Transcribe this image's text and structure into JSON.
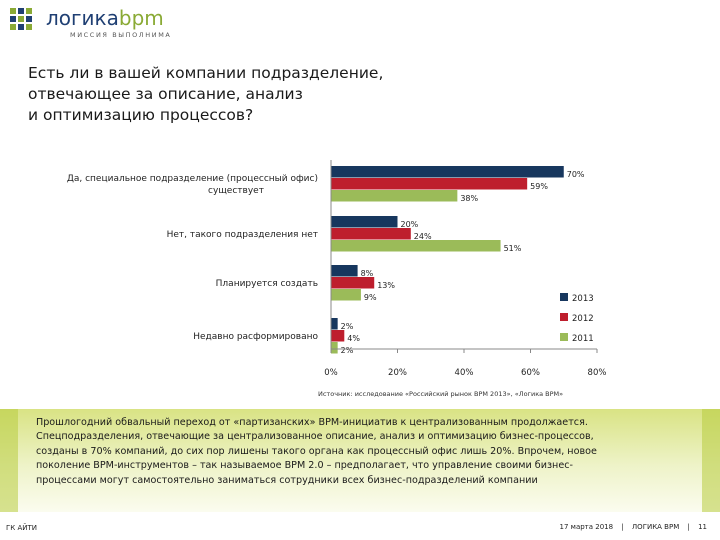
{
  "header": {
    "logo_text_main": "логика",
    "logo_text_accent": "bpm",
    "logo_tagline": "МИССИЯ ВЫПОЛНИМА"
  },
  "title_lines": [
    "Есть ли в вашей компании подразделение,",
    "отвечающее за описание, анализ",
    "и оптимизацию процессов?"
  ],
  "colors": {
    "2013": "#17375e",
    "2012": "#be1e2d",
    "2011": "#9bbb59",
    "logo_blue": "#1f3f73",
    "logo_green": "#8aaa35",
    "note_green": "#d9e384"
  },
  "chart_data": {
    "type": "bar",
    "orientation": "horizontal",
    "categories": [
      "Да, специальное подразделение (процессный офис) существует",
      "Нет, такого подразделения нет",
      "Планируется создать",
      "Недавно расформировано"
    ],
    "category_lines": [
      [
        "Да, специальное подразделение (процессный офис)",
        "существует"
      ],
      [
        "Нет, такого подразделения нет"
      ],
      [
        "Планируется создать"
      ],
      [
        "Недавно расформировано"
      ]
    ],
    "series": [
      {
        "name": "2013",
        "values": [
          70,
          20,
          8,
          2
        ],
        "labels": [
          "70%",
          "20%",
          "8%",
          "2%"
        ]
      },
      {
        "name": "2012",
        "values": [
          59,
          24,
          13,
          4
        ],
        "labels": [
          "59%",
          "24%",
          "13%",
          "4%"
        ]
      },
      {
        "name": "2011",
        "values": [
          38,
          51,
          9,
          2
        ],
        "labels": [
          "38%",
          "51%",
          "9%",
          "2%"
        ]
      }
    ],
    "xlim": [
      0,
      80
    ],
    "xticks": [
      0,
      20,
      40,
      60,
      80
    ],
    "xtick_labels": [
      "0%",
      "20%",
      "40%",
      "60%",
      "80%"
    ],
    "legend": [
      "2013",
      "2012",
      "2011"
    ],
    "legend_position": "right",
    "grid": false
  },
  "source_text": "Источник: исследование «Российский рынок BPM 2013», «Логика BPM»",
  "note_lines": [
    "Прошлогодний обвальный переход от «партизанских» BPM-инициатив к централизованным продолжается.",
    "Спецподразделения, отвечающие за централизованное описание, анализ и оптимизацию бизнес-процессов,",
    "созданы в 70% компаний, до сих пор лишены такого органа как процессный офис лишь 20%. Впрочем, новое",
    "поколение BPM-инструментов – так называемое BPM 2.0 – предполагает, что управление своими бизнес-",
    "процессами могут самостоятельно заниматься сотрудники всех бизнес-подразделений компании"
  ],
  "footer": {
    "left": "ГК АЙТИ",
    "date": "17 марта 2018",
    "sep": "|",
    "company": "ЛОГИКА BPM",
    "page": "11"
  }
}
